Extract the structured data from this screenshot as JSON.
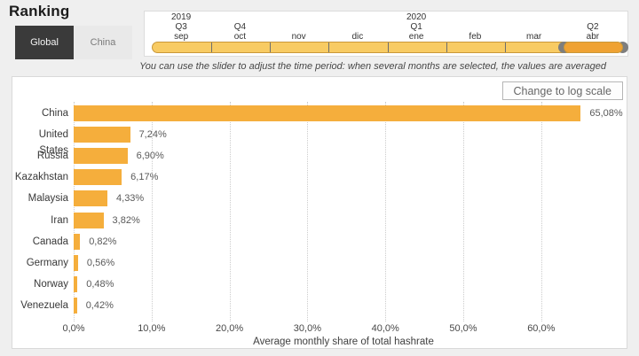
{
  "page": {
    "title": "Ranking"
  },
  "tabs": [
    {
      "label": "Global",
      "active": true
    },
    {
      "label": "China",
      "active": false
    }
  ],
  "timeline": {
    "months": [
      {
        "label": "sep",
        "quarter": "Q3",
        "year": "2019",
        "selected": false
      },
      {
        "label": "oct",
        "quarter": "Q4",
        "year": "",
        "selected": false
      },
      {
        "label": "nov",
        "quarter": "",
        "year": "",
        "selected": false
      },
      {
        "label": "dic",
        "quarter": "",
        "year": "",
        "selected": false
      },
      {
        "label": "ene",
        "quarter": "Q1",
        "year": "2020",
        "selected": false
      },
      {
        "label": "feb",
        "quarter": "",
        "year": "",
        "selected": false
      },
      {
        "label": "mar",
        "quarter": "",
        "year": "",
        "selected": false
      },
      {
        "label": "abr",
        "quarter": "Q2",
        "year": "",
        "selected": true
      }
    ],
    "hint": "You can use the slider to adjust the time period: when several months are selected, the values are averaged"
  },
  "chart": {
    "log_button_label": "Change to log scale"
  },
  "chart_data": {
    "type": "bar",
    "orientation": "horizontal",
    "title": "Ranking",
    "categories": [
      "China",
      "United States",
      "Russia",
      "Kazakhstan",
      "Malaysia",
      "Iran",
      "Canada",
      "Germany",
      "Norway",
      "Venezuela"
    ],
    "values": [
      65.08,
      7.24,
      6.9,
      6.17,
      4.33,
      3.82,
      0.82,
      0.56,
      0.48,
      0.42
    ],
    "value_labels": [
      "65,08%",
      "7,24%",
      "6,90%",
      "6,17%",
      "4,33%",
      "3,82%",
      "0,82%",
      "0,56%",
      "0,48%",
      "0,42%"
    ],
    "x_ticks": [
      "0,0%",
      "10,0%",
      "20,0%",
      "30,0%",
      "40,0%",
      "50,0%",
      "60,0%"
    ],
    "x_tick_values": [
      0,
      10,
      20,
      30,
      40,
      50,
      60
    ],
    "xlabel": "Average monthly share of total hashrate",
    "ylabel": "",
    "xlim": [
      0,
      69.2
    ],
    "grid": true,
    "legend": false,
    "bar_color": "#f5ae3c",
    "slider_color": "#f8cb63",
    "slider_selected_color": "#efa233",
    "handle_color": "#7e7e7e"
  }
}
